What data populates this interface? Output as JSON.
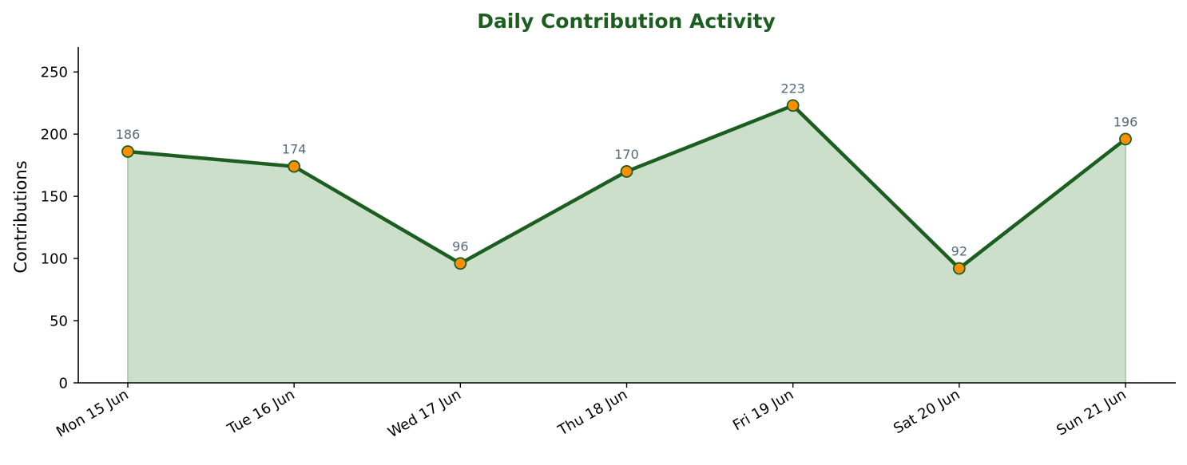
{
  "chart_data": {
    "type": "area",
    "title": "Daily Contribution Activity",
    "xlabel": "",
    "ylabel": "Contributions",
    "categories": [
      "Mon 15 Jun",
      "Tue 16 Jun",
      "Wed 17 Jun",
      "Thu 18 Jun",
      "Fri 19 Jun",
      "Sat 20 Jun",
      "Sun 21 Jun"
    ],
    "series": [
      {
        "values": [
          186,
          174,
          96,
          170,
          223,
          92,
          196
        ]
      }
    ],
    "ylim": [
      0,
      270
    ],
    "yticks": [
      0,
      50,
      100,
      150,
      200,
      250
    ],
    "grid": false,
    "legend": "none",
    "data_labels": true,
    "colors": {
      "line": "#1b5e20",
      "fill": "#cbdfcb",
      "fill_edge": "#9fc59f",
      "marker_fill": "#ff8f00",
      "marker_edge": "#1b5e20",
      "title": "#1b5e20",
      "data_label": "#556b7a",
      "axis": "#000000"
    }
  }
}
